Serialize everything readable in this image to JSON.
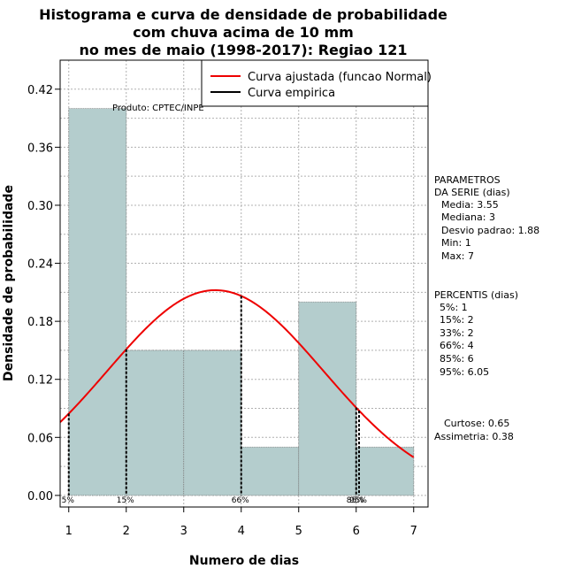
{
  "chart_data": {
    "type": "bar",
    "title_lines": [
      "Histograma e curva de densidade de probabilidade",
      "com chuva acima de 10 mm",
      "no mes de maio (1998-2017): Regiao 121"
    ],
    "xlabel": "Numero de dias",
    "ylabel": "Densidade de probabilidade",
    "xlim": [
      0.85,
      7.25
    ],
    "ylim": [
      -0.012,
      0.45
    ],
    "x_ticks": [
      "1",
      "2",
      "3",
      "4",
      "5",
      "6",
      "7"
    ],
    "y_ticks": [
      "0.00",
      "0.06",
      "0.12",
      "0.18",
      "0.24",
      "0.30",
      "0.36",
      "0.42"
    ],
    "bins": [
      {
        "from": 1,
        "to": 2,
        "value": 0.4
      },
      {
        "from": 2,
        "to": 3,
        "value": 0.15
      },
      {
        "from": 3,
        "to": 4,
        "value": 0.15
      },
      {
        "from": 4,
        "to": 5,
        "value": 0.05
      },
      {
        "from": 5,
        "to": 6,
        "value": 0.2
      },
      {
        "from": 6,
        "to": 7,
        "value": 0.05
      }
    ],
    "normal_fit": {
      "mean": 3.55,
      "sd": 1.88
    },
    "percentile_lines": [
      {
        "x": 1,
        "label": "5%"
      },
      {
        "x": 2,
        "label": "15%"
      },
      {
        "x": 4,
        "label": "66%"
      },
      {
        "x": 6,
        "label": "85%"
      },
      {
        "x": 6.05,
        "label": "95%"
      }
    ],
    "legend": {
      "entries": [
        {
          "label": "Curva ajustada (funcao Normal)",
          "color": "#ee0000"
        },
        {
          "label": "Curva empirica",
          "color": "#000000"
        }
      ]
    },
    "annotation": "Produto: CPTEC/INPE",
    "colors": {
      "bar_fill": "#b4cdcd",
      "fit_line": "#ee0000",
      "grid": "#b0b0b0"
    }
  },
  "side_panel": {
    "params_title_1": "PARAMETROS",
    "params_title_2": "DA SERIE (dias)",
    "media": "Media: 3.55",
    "mediana": "Mediana: 3",
    "desvio": "Desvio padrao: 1.88",
    "min": "Min: 1",
    "max": "Max: 7",
    "percentis_title": "PERCENTIS (dias)",
    "p5": "5%: 1",
    "p15": "15%: 2",
    "p33": "33%: 2",
    "p66": "66%: 4",
    "p85": "85%: 6",
    "p95": "95%: 6.05",
    "curtose": "Curtose: 0.65",
    "assimetria": "Assimetria: 0.38"
  }
}
